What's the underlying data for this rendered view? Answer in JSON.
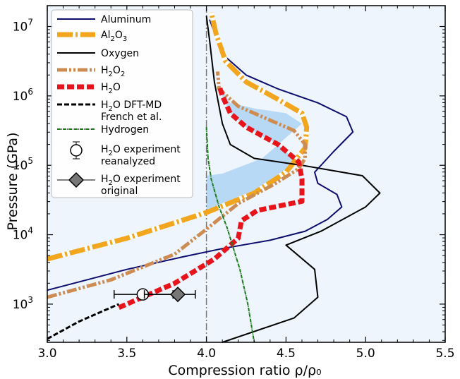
{
  "chart_data": {
    "type": "line",
    "title": "",
    "xlabel": "Compression ratio ρ/ρ₀",
    "ylabel": "Pressure (GPa)",
    "xlim": [
      3.0,
      5.5
    ],
    "ylim_log10": [
      2.45,
      7.3
    ],
    "y_scale": "log",
    "grid": false,
    "x_ticks": [
      {
        "value": 3.0,
        "label": "3.0"
      },
      {
        "value": 3.5,
        "label": "3.5"
      },
      {
        "value": 4.0,
        "label": "4.0"
      },
      {
        "value": 4.5,
        "label": "4.5"
      },
      {
        "value": 5.0,
        "label": "5.0"
      },
      {
        "value": 5.5,
        "label": "5.5"
      }
    ],
    "y_ticks": [
      {
        "exp": 3,
        "base": "10",
        "sup": "3"
      },
      {
        "exp": 4,
        "base": "10",
        "sup": "4"
      },
      {
        "exp": 5,
        "base": "10",
        "sup": "5"
      },
      {
        "exp": 6,
        "base": "10",
        "sup": "6"
      },
      {
        "exp": 7,
        "base": "10",
        "sup": "7"
      }
    ],
    "reference_line_x": 4.0,
    "shaded_region_color": "#b8d9f5",
    "background_color": "#eef5fc",
    "legend": {
      "location": "top-left",
      "entries": [
        {
          "id": "aluminum",
          "text": "Aluminum",
          "sub": "",
          "rest": "",
          "line2": ""
        },
        {
          "id": "al2o3",
          "text": "Al",
          "sub": "2",
          "rest": "O",
          "sub2": "3",
          "line2": ""
        },
        {
          "id": "oxygen",
          "text": "Oxygen",
          "sub": "",
          "rest": "",
          "line2": ""
        },
        {
          "id": "h2o2",
          "text": "H",
          "sub": "2",
          "rest": "O",
          "sub2": "2",
          "line2": ""
        },
        {
          "id": "h2o",
          "text": "H",
          "sub": "2",
          "rest": "O",
          "line2": ""
        },
        {
          "id": "dftmd",
          "text": "H",
          "sub": "2",
          "rest": "O DFT-MD",
          "line2": "French et al."
        },
        {
          "id": "hydrogen",
          "text": "Hydrogen",
          "sub": "",
          "rest": "",
          "line2": ""
        },
        {
          "id": "exp_re",
          "text": "H",
          "sub": "2",
          "rest": "O experiment",
          "line2": "reanalyzed"
        },
        {
          "id": "exp_orig",
          "text": "H",
          "sub": "2",
          "rest": "O experiment",
          "line2": "original"
        }
      ]
    },
    "series": [
      {
        "id": "aluminum",
        "color": "#0d0d6e",
        "points": [
          [
            3.0,
            3.2
          ],
          [
            3.5,
            3.5
          ],
          [
            3.85,
            3.68
          ],
          [
            4.1,
            3.8
          ],
          [
            4.4,
            3.92
          ],
          [
            4.62,
            4.05
          ],
          [
            4.76,
            4.22
          ],
          [
            4.85,
            4.4
          ],
          [
            4.82,
            4.58
          ],
          [
            4.7,
            4.74
          ],
          [
            4.68,
            4.9
          ],
          [
            4.8,
            5.2
          ],
          [
            4.92,
            5.48
          ],
          [
            4.88,
            5.7
          ],
          [
            4.7,
            5.9
          ],
          [
            4.45,
            6.1
          ],
          [
            4.25,
            6.3
          ],
          [
            4.1,
            6.6
          ],
          [
            4.02,
            7.1
          ]
        ]
      },
      {
        "id": "al2o3",
        "color": "#f2a61d",
        "points": [
          [
            3.0,
            3.65
          ],
          [
            3.5,
            3.95
          ],
          [
            4.0,
            4.32
          ],
          [
            4.3,
            4.6
          ],
          [
            4.5,
            4.9
          ],
          [
            4.62,
            5.25
          ],
          [
            4.63,
            5.55
          ],
          [
            4.6,
            5.75
          ],
          [
            4.45,
            5.95
          ],
          [
            4.25,
            6.2
          ],
          [
            4.12,
            6.5
          ],
          [
            4.06,
            6.9
          ],
          [
            4.03,
            7.2
          ]
        ]
      },
      {
        "id": "oxygen",
        "color": "#000000",
        "points": [
          [
            4.1,
            2.45
          ],
          [
            4.55,
            2.8
          ],
          [
            4.7,
            3.1
          ],
          [
            4.68,
            3.5
          ],
          [
            4.5,
            3.85
          ],
          [
            4.72,
            4.05
          ],
          [
            5.0,
            4.4
          ],
          [
            5.09,
            4.6
          ],
          [
            4.98,
            4.85
          ],
          [
            4.6,
            5.0
          ],
          [
            4.3,
            5.1
          ],
          [
            4.15,
            5.3
          ],
          [
            4.1,
            5.6
          ],
          [
            4.05,
            6.2
          ],
          [
            4.02,
            6.8
          ],
          [
            4.0,
            7.15
          ]
        ]
      },
      {
        "id": "h2o2",
        "color": "#cd8c52",
        "points": [
          [
            3.0,
            3.1
          ],
          [
            3.4,
            3.35
          ],
          [
            3.8,
            3.72
          ],
          [
            4.0,
            4.08
          ],
          [
            4.2,
            4.45
          ],
          [
            4.42,
            4.72
          ],
          [
            4.58,
            4.95
          ],
          [
            4.62,
            5.1
          ],
          [
            4.62,
            5.3
          ],
          [
            4.55,
            5.5
          ],
          [
            4.4,
            5.65
          ],
          [
            4.2,
            5.85
          ],
          [
            4.08,
            6.1
          ],
          [
            4.07,
            6.35
          ]
        ]
      },
      {
        "id": "h2o",
        "color": "#e8141c",
        "points": [
          [
            3.45,
            2.95
          ],
          [
            3.8,
            3.3
          ],
          [
            4.05,
            3.65
          ],
          [
            4.2,
            3.95
          ],
          [
            4.22,
            4.2
          ],
          [
            4.32,
            4.35
          ],
          [
            4.6,
            4.48
          ],
          [
            4.6,
            4.8
          ],
          [
            4.58,
            5.05
          ],
          [
            4.45,
            5.3
          ],
          [
            4.25,
            5.55
          ],
          [
            4.15,
            5.75
          ],
          [
            4.1,
            6.0
          ],
          [
            4.08,
            6.15
          ]
        ]
      },
      {
        "id": "dftmd",
        "color": "#000000",
        "points": [
          [
            3.0,
            2.5
          ],
          [
            3.2,
            2.75
          ],
          [
            3.45,
            3.0
          ]
        ]
      },
      {
        "id": "hydrogen",
        "color": "#1a7a1a",
        "points": [
          [
            4.0,
            5.55
          ],
          [
            4.01,
            5.1
          ],
          [
            4.03,
            4.8
          ],
          [
            4.08,
            4.4
          ],
          [
            4.13,
            4.1
          ],
          [
            4.21,
            3.5
          ],
          [
            4.26,
            3.0
          ],
          [
            4.3,
            2.45
          ]
        ]
      }
    ],
    "shaded_region": [
      [
        4.0,
        4.32
      ],
      [
        4.3,
        4.6
      ],
      [
        4.45,
        4.87
      ],
      [
        4.57,
        5.05
      ],
      [
        4.45,
        5.3
      ],
      [
        4.25,
        5.55
      ],
      [
        4.15,
        5.75
      ],
      [
        4.1,
        6.0
      ],
      [
        4.08,
        6.15
      ],
      [
        4.15,
        5.9
      ],
      [
        4.3,
        5.82
      ],
      [
        4.5,
        5.75
      ],
      [
        4.6,
        5.6
      ],
      [
        4.35,
        5.1
      ],
      [
        4.1,
        4.88
      ],
      [
        4.0,
        4.85
      ]
    ],
    "experiments": [
      {
        "id": "exp_re",
        "x": 3.6,
        "y_log10": 3.14,
        "xerr": [
          3.42,
          3.79
        ],
        "marker": "circle",
        "color": "#ffffff"
      },
      {
        "id": "exp_orig",
        "x": 3.82,
        "y_log10": 3.14,
        "xerr": [
          3.61,
          3.93
        ],
        "marker": "diamond",
        "color": "#777777"
      }
    ]
  }
}
